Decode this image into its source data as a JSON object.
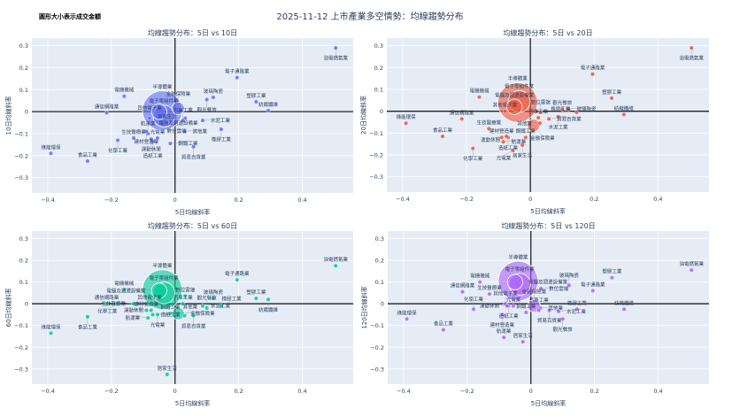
{
  "title": "2025-11-12 上市產業多空情勢：均線趨勢分布",
  "annotation": "圓形大小表示成交金額",
  "chart_data": [
    {
      "type": "scatter",
      "title": "均線趨勢分布：5日 vs 10日",
      "xlabel": "5日均線斜率",
      "ylabel": "10日均線斜率",
      "color": "#636efa",
      "xlim": [
        -0.45,
        0.56
      ],
      "ylim": [
        -0.37,
        0.335
      ],
      "xticks": [
        "-0.4",
        "-0.2",
        "0",
        "0.2",
        "0.4"
      ],
      "yticks": [
        "-0.3",
        "-0.2",
        "-0.1",
        "0",
        "0.1",
        "0.2",
        "0.3"
      ],
      "grid": true
    },
    {
      "type": "scatter",
      "title": "均線趨勢分布：5日 vs 20日",
      "xlabel": "5日均線斜率",
      "ylabel": "20日均線斜率",
      "color": "#ef553b",
      "xlim": [
        -0.45,
        0.56
      ],
      "ylim": [
        -0.37,
        0.335
      ],
      "xticks": [
        "-0.4",
        "-0.2",
        "0",
        "0.2",
        "0.4"
      ],
      "yticks": [
        "-0.3",
        "-0.2",
        "-0.1",
        "0",
        "0.1",
        "0.2",
        "0.3"
      ],
      "grid": true
    },
    {
      "type": "scatter",
      "title": "均線趨勢分布：5日 vs 60日",
      "xlabel": "5日均線斜率",
      "ylabel": "60日均線斜率",
      "color": "#00cc96",
      "xlim": [
        -0.45,
        0.56
      ],
      "ylim": [
        -0.37,
        0.335
      ],
      "xticks": [
        "-0.4",
        "-0.2",
        "0",
        "0.2",
        "0.4"
      ],
      "yticks": [
        "-0.3",
        "-0.2",
        "-0.1",
        "0",
        "0.1",
        "0.2",
        "0.3"
      ],
      "grid": true
    },
    {
      "type": "scatter",
      "title": "均線趨勢分布：5日 vs 120日",
      "xlabel": "5日均線斜率",
      "ylabel": "120日均線斜率",
      "color": "#ab63fa",
      "xlim": [
        -0.45,
        0.56
      ],
      "ylim": [
        -0.37,
        0.335
      ],
      "xticks": [
        "-0.4",
        "-0.2",
        "0",
        "0.2",
        "0.4"
      ],
      "yticks": [
        "-0.3",
        "-0.2",
        "-0.1",
        "0",
        "0.1",
        "0.2",
        "0.3"
      ],
      "grid": true
    }
  ],
  "points": [
    {
      "name": "油電燃氣業",
      "x": 0.505,
      "y": [
        0.29,
        0.29,
        0.175,
        0.155
      ],
      "size": 1
    },
    {
      "name": "電子通路業",
      "x": 0.195,
      "y": [
        0.155,
        0.17,
        0.11,
        0.06
      ],
      "size": 1
    },
    {
      "name": "塑膠工業",
      "x": 0.255,
      "y": [
        0.045,
        0.06,
        0.025,
        0.12
      ],
      "size": 1
    },
    {
      "name": "紡織纖維",
      "x": 0.293,
      "y": [
        0.005,
        -0.015,
        0.02,
        -0.025
      ],
      "size": 1
    },
    {
      "name": "綠能環保",
      "x": -0.39,
      "y": [
        -0.19,
        -0.055,
        -0.135,
        -0.07
      ],
      "size": 1
    },
    {
      "name": "食品工業",
      "x": -0.275,
      "y": [
        -0.225,
        -0.115,
        -0.06,
        -0.12
      ],
      "size": 1
    },
    {
      "name": "電機機械",
      "x": -0.16,
      "y": [
        0.07,
        0.065,
        0.065,
        0.1
      ],
      "size": 1
    },
    {
      "name": "通信網路業",
      "x": -0.215,
      "y": [
        -0.005,
        -0.035,
        0.0,
        0.055
      ],
      "size": 1
    },
    {
      "name": "化學工業",
      "x": -0.18,
      "y": [
        -0.13,
        -0.17,
        0.0,
        -0.025
      ],
      "size": 1
    },
    {
      "name": "生技醫療業",
      "x": -0.13,
      "y": [
        -0.12,
        -0.08,
        0.0,
        0.045
      ],
      "size": 1
    },
    {
      "name": "半導體業",
      "x": -0.04,
      "y": [
        0.005,
        0.04,
        0.065,
        0.105
      ],
      "size": 20
    },
    {
      "name": "電子零組件業",
      "x": -0.035,
      "y": [
        -0.02,
        0.045,
        0.05,
        0.09
      ],
      "size": 6
    },
    {
      "name": "電腦及週邊設備業",
      "x": -0.05,
      "y": [
        0.0,
        0.02,
        0.06,
        0.1
      ],
      "size": 3
    },
    {
      "name": "其他電子業",
      "x": -0.08,
      "y": [
        -0.03,
        0.0,
        0.0,
        0.0
      ],
      "size": 1
    },
    {
      "name": "光電業",
      "x": -0.055,
      "y": [
        -0.12,
        -0.18,
        -0.05,
        -0.01
      ],
      "size": 1
    },
    {
      "name": "航運業",
      "x": -0.085,
      "y": [
        -0.1,
        -0.14,
        -0.065,
        -0.155
      ],
      "size": 1
    },
    {
      "name": "居家生活",
      "x": -0.025,
      "y": [
        -0.05,
        -0.155,
        -0.325,
        -0.175
      ],
      "size": 1
    },
    {
      "name": "建材營造業",
      "x": -0.09,
      "y": [
        -0.09,
        -0.12,
        -0.03,
        -0.05
      ],
      "size": 1
    },
    {
      "name": "鋼鐵工業",
      "x": -0.015,
      "y": [
        -0.145,
        -0.12,
        -0.045,
        -0.04
      ],
      "size": 1
    },
    {
      "name": "貿易百貨業",
      "x": 0.058,
      "y": [
        -0.16,
        -0.035,
        -0.055,
        -0.03
      ],
      "size": 1
    },
    {
      "name": "其他業",
      "x": 0.03,
      "y": [
        -0.09,
        -0.055,
        -0.055,
        -0.02
      ],
      "size": 1
    },
    {
      "name": "玻璃陶瓷",
      "x": 0.12,
      "y": [
        0.065,
        0.01,
        0.025,
        0.085
      ],
      "size": 1
    },
    {
      "name": "觀光餐旅",
      "x": 0.1,
      "y": [
        0.055,
        0.01,
        -0.02,
        -0.07
      ],
      "size": 1
    },
    {
      "name": "水泥工業",
      "x": 0.087,
      "y": [
        -0.04,
        -0.025,
        -0.01,
        -0.035
      ],
      "size": 1
    },
    {
      "name": "橡膠工業",
      "x": 0.145,
      "y": [
        -0.08,
        -0.005,
        -0.01,
        -0.025
      ],
      "size": 1
    },
    {
      "name": "數位雲端",
      "x": 0.032,
      "y": [
        -0.03,
        -0.005,
        0.035,
        0.07
      ],
      "size": 1
    },
    {
      "name": "汽車工業",
      "x": 0.025,
      "y": [
        -0.04,
        -0.03,
        0.0,
        -0.03
      ],
      "size": 1
    },
    {
      "name": "金融保險業",
      "x": 0.01,
      "y": [
        0.015,
        -0.065,
        -0.045,
        -0.01
      ],
      "size": 2
    },
    {
      "name": "造紙工業",
      "x": -0.07,
      "y": [
        -0.135,
        -0.12,
        -0.05,
        -0.01
      ],
      "size": 1
    },
    {
      "name": "運動休閒",
      "x": -0.075,
      "y": [
        -0.125,
        -0.115,
        -0.03,
        -0.01
      ],
      "size": 1
    }
  ]
}
